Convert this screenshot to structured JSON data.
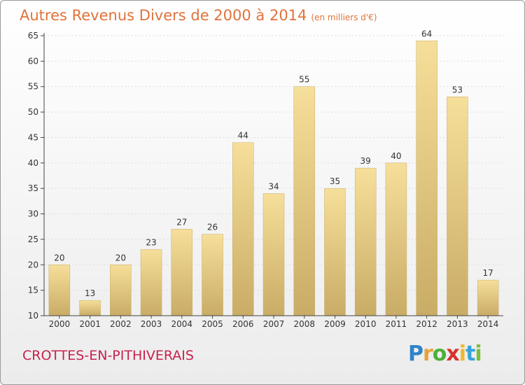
{
  "header": {
    "title": "Autres Revenus Divers de 2000 à 2014",
    "subtitle": "(en milliers d'€)"
  },
  "footer": {
    "commune": "CROTTES-EN-PITHIVERAIS",
    "brand_letters": [
      "P",
      "r",
      "o",
      "x",
      "i",
      "t",
      "i"
    ]
  },
  "colors": {
    "title": "#e0733a",
    "commune": "#c8224e",
    "bar_top": "#f6df9a",
    "bar_bottom": "#c9ac66",
    "axis": "#444444",
    "grid": "#dddddd"
  },
  "chart_data": {
    "type": "bar",
    "categories": [
      "2000",
      "2001",
      "2002",
      "2003",
      "2004",
      "2005",
      "2006",
      "2007",
      "2008",
      "2009",
      "2010",
      "2011",
      "2012",
      "2013",
      "2014"
    ],
    "values": [
      20,
      13,
      20,
      23,
      27,
      26,
      44,
      34,
      55,
      35,
      39,
      40,
      64,
      53,
      17
    ],
    "ylim": [
      10,
      65
    ],
    "yticks": [
      10,
      15,
      20,
      25,
      30,
      35,
      40,
      45,
      50,
      55,
      60,
      65
    ],
    "grid": "horizontal dotted"
  }
}
